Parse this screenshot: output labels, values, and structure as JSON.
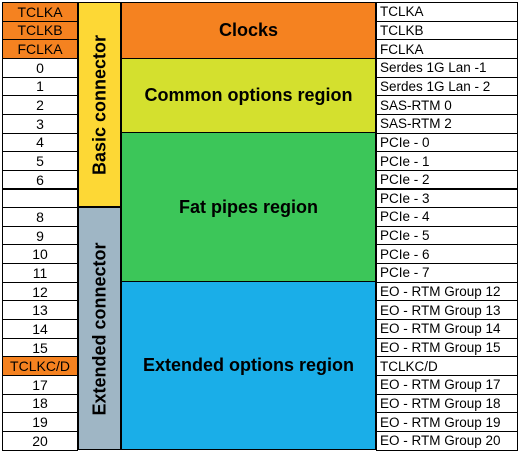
{
  "left_pins": [
    "TCLKA",
    "TCLKB",
    "FCLKA",
    "0",
    "1",
    "2",
    "3",
    "4",
    "5",
    "6",
    "",
    "8",
    "9",
    "10",
    "11",
    "12",
    "13",
    "14",
    "15",
    "TCLKC/D",
    "17",
    "18",
    "19",
    "20"
  ],
  "right_signals": [
    "TCLKA",
    "TCLKB",
    "FCLKA",
    "Serdes 1G Lan -1",
    "Serdes 1G Lan - 2",
    "SAS-RTM 0",
    "SAS-RTM 2",
    "PCIe - 0",
    "PCIe - 1",
    "PCIe - 2",
    "PCIe - 3",
    "PCIe - 4",
    "PCIe - 5",
    "PCIe - 6",
    "PCIe - 7",
    "EO - RTM Group 12",
    "EO - RTM Group 13",
    "EO - RTM Group 14",
    "EO - RTM Group 15",
    "TCLKC/D",
    "EO - RTM Group 17",
    "EO - RTM Group 18",
    "EO - RTM Group 19",
    "EO - RTM Group 20"
  ],
  "connectors": {
    "basic": "Basic connector",
    "extended": "Extended connector"
  },
  "regions": {
    "clocks": "Clocks",
    "common": "Common options region",
    "fat_pipes": "Fat pipes region",
    "extended": "Extended options region"
  },
  "colors": {
    "clock_orange": "#f58220",
    "basic_connector_yellow": "#fdd835",
    "extended_connector_gray": "#9fb6c5",
    "common_region_lime": "#d4e02e",
    "fat_pipes_green": "#3cc659",
    "extended_region_blue": "#1aaee8"
  }
}
